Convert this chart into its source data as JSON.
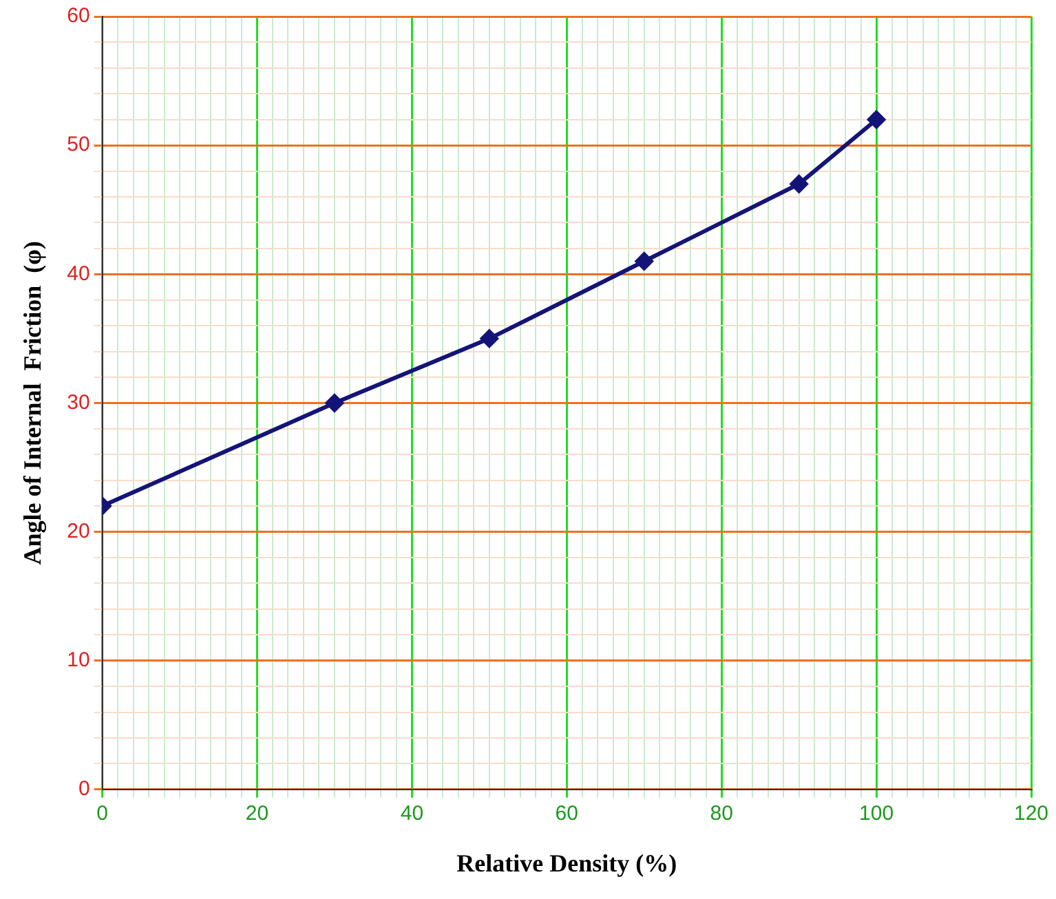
{
  "chart_data": {
    "type": "line",
    "xlabel": "Relative Density (%)",
    "ylabel": "Angle of Internal  Friction  (φ)",
    "x": [
      0,
      30,
      50,
      70,
      90,
      100
    ],
    "series": [
      {
        "color": "#141478",
        "values": [
          22,
          30,
          35,
          41,
          47,
          52
        ]
      }
    ],
    "xlim": [
      0,
      120
    ],
    "ylim": [
      0,
      60
    ],
    "xticks": [
      0,
      {
        "value": 2,
        "label": null
      },
      {
        "value": 4,
        "label": null
      },
      {
        "value": 6,
        "label": null
      },
      {
        "value": 8,
        "label": null
      },
      {
        "value": 10,
        "label": null
      },
      {
        "value": 12,
        "label": null
      },
      {
        "value": 14,
        "label": null
      },
      {
        "value": 16,
        "label": null
      },
      {
        "value": 18,
        "label": null
      },
      20,
      {
        "value": 22,
        "label": null
      },
      {
        "value": 24,
        "label": null
      },
      {
        "value": 26,
        "label": null
      },
      {
        "value": 28,
        "label": null
      },
      {
        "value": 30,
        "label": null
      },
      {
        "value": 32,
        "label": null
      },
      {
        "value": 34,
        "label": null
      },
      {
        "value": 36,
        "label": null
      },
      {
        "value": 38,
        "label": null
      },
      40,
      {
        "value": 42,
        "label": null
      },
      {
        "value": 44,
        "label": null
      },
      {
        "value": 46,
        "label": null
      },
      {
        "value": 48,
        "label": null
      },
      {
        "value": 50,
        "label": null
      },
      {
        "value": 52,
        "label": null
      },
      {
        "value": 54,
        "label": null
      },
      {
        "value": 56,
        "label": null
      },
      {
        "value": 58,
        "label": null
      },
      60,
      {
        "value": 62,
        "label": null
      },
      {
        "value": 64,
        "label": null
      },
      {
        "value": 66,
        "label": null
      },
      {
        "value": 68,
        "label": null
      },
      {
        "value": 70,
        "label": null
      },
      {
        "value": 72,
        "label": null
      },
      {
        "value": 74,
        "label": null
      },
      {
        "value": 76,
        "label": null
      },
      {
        "value": 78,
        "label": null
      },
      80,
      {
        "value": 82,
        "label": null
      },
      {
        "value": 84,
        "label": null
      },
      {
        "value": 86,
        "label": null
      },
      {
        "value": 88,
        "label": null
      },
      {
        "value": 90,
        "label": null
      },
      {
        "value": 92,
        "label": null
      },
      {
        "value": 94,
        "label": null
      },
      {
        "value": 96,
        "label": null
      },
      {
        "value": 98,
        "label": null
      },
      100,
      {
        "value": 102,
        "label": null
      },
      {
        "value": 104,
        "label": null
      },
      {
        "value": 106,
        "label": null
      },
      {
        "value": 108,
        "label": null
      },
      {
        "value": 110,
        "label": null
      },
      {
        "value": 112,
        "label": null
      },
      {
        "value": 114,
        "label": null
      },
      {
        "value": 116,
        "label": null
      },
      {
        "value": 118,
        "label": null
      },
      120
    ],
    "yticks": [
      0,
      {
        "value": 2,
        "label": null
      },
      {
        "value": 4,
        "label": null
      },
      {
        "value": 6,
        "label": null
      },
      {
        "value": 8,
        "label": null
      },
      10,
      {
        "value": 12,
        "label": null
      },
      {
        "value": 14,
        "label": null
      },
      {
        "value": 16,
        "label": null
      },
      {
        "value": 18,
        "label": null
      },
      20,
      {
        "value": 22,
        "label": null
      },
      {
        "value": 24,
        "label": null
      },
      {
        "value": 26,
        "label": null
      },
      {
        "value": 28,
        "label": null
      },
      30,
      {
        "value": 32,
        "label": null
      },
      {
        "value": 34,
        "label": null
      },
      {
        "value": 36,
        "label": null
      },
      {
        "value": 38,
        "label": null
      },
      40,
      {
        "value": 42,
        "label": null
      },
      {
        "value": 44,
        "label": null
      },
      {
        "value": 46,
        "label": null
      },
      {
        "value": 48,
        "label": null
      },
      50,
      {
        "value": 52,
        "label": null
      },
      {
        "value": 54,
        "label": null
      },
      {
        "value": 56,
        "label": null
      },
      {
        "value": 58,
        "label": null
      },
      60
    ],
    "grid": true,
    "legend": false,
    "marker": "diamond",
    "line_style": "solid"
  }
}
